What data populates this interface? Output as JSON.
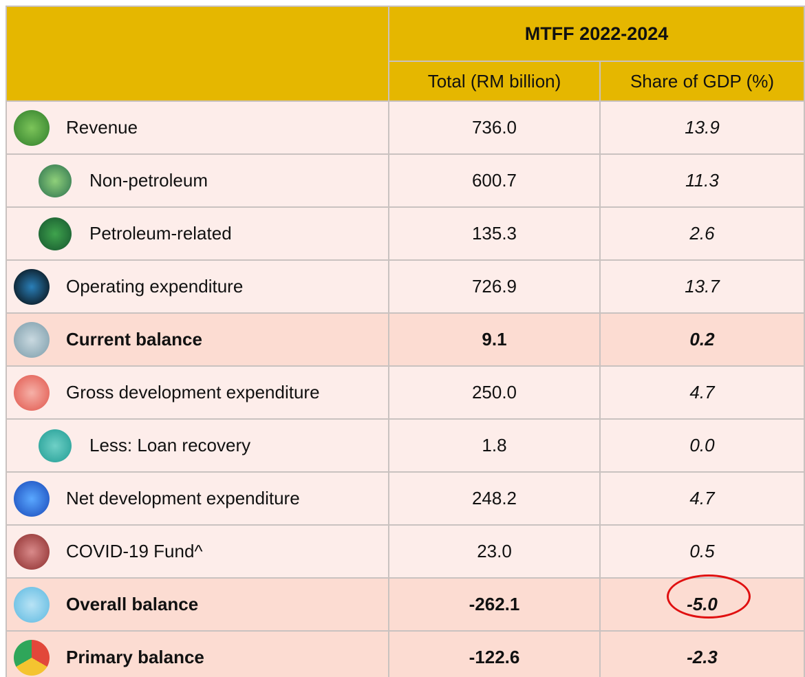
{
  "table": {
    "header": {
      "title": "MTFF 2022-2024",
      "columns": [
        "Total (RM billion)",
        "Share of GDP (%)"
      ]
    },
    "rows": [
      {
        "label": "Revenue",
        "total": "736.0",
        "share": "13.9"
      },
      {
        "label": "Non-petroleum",
        "total": "600.7",
        "share": "11.3",
        "sub": true
      },
      {
        "label": "Petroleum-related",
        "total": "135.3",
        "share": "2.6",
        "sub": true
      },
      {
        "label": "Operating expenditure",
        "total": "726.9",
        "share": "13.7"
      },
      {
        "label": "Current balance",
        "total": "9.1",
        "share": "0.2",
        "bold": true
      },
      {
        "label": "Gross development expenditure",
        "total": "250.0",
        "share": "4.7"
      },
      {
        "label": "Less: Loan recovery",
        "total": "1.8",
        "share": "0.0",
        "sub": true
      },
      {
        "label": "Net development expenditure",
        "total": "248.2",
        "share": "4.7"
      },
      {
        "label": "COVID-19 Fund^",
        "total": "23.0",
        "share": "0.5"
      },
      {
        "label": "Overall balance",
        "total": "-262.1",
        "share": "-5.0",
        "bold": true
      },
      {
        "label": "Primary balance",
        "total": "-122.6",
        "share": "-2.3",
        "bold": true
      }
    ]
  }
}
